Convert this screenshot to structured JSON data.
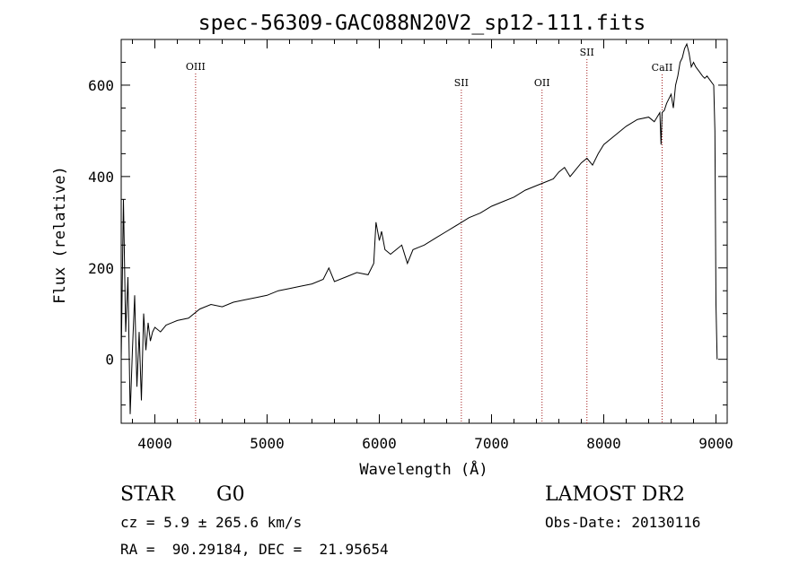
{
  "chart_data": {
    "type": "line",
    "title": "spec-56309-GAC088N20V2_sp12-111.fits",
    "xlabel": "Wavelength (Å)",
    "ylabel": "Flux (relative)",
    "xlim": [
      3700,
      9100
    ],
    "ylim": [
      -140,
      700
    ],
    "xticks": [
      4000,
      5000,
      6000,
      7000,
      8000,
      9000
    ],
    "yticks": [
      0,
      200,
      400,
      600
    ],
    "line_color": "#000000",
    "marker_color": "#a01818",
    "lines": [
      {
        "label": "OIII",
        "wavelength": 4363
      },
      {
        "label": "SII",
        "wavelength": 6731
      },
      {
        "label": "OII",
        "wavelength": 7450
      },
      {
        "label": "SII",
        "wavelength": 7850
      },
      {
        "label": "CaII",
        "wavelength": 8520
      }
    ],
    "series": [
      {
        "x": [
          3700,
          3720,
          3740,
          3760,
          3780,
          3800,
          3820,
          3840,
          3860,
          3880,
          3900,
          3920,
          3940,
          3960,
          3980,
          4000,
          4050,
          4100,
          4150,
          4200,
          4300,
          4400,
          4500,
          4600,
          4700,
          4800,
          4900,
          5000,
          5100,
          5200,
          5300,
          5400,
          5500,
          5550,
          5600,
          5700,
          5800,
          5900,
          5950,
          5970,
          6000,
          6020,
          6050,
          6100,
          6150,
          6200,
          6250,
          6300,
          6350,
          6400,
          6500,
          6600,
          6700,
          6800,
          6900,
          7000,
          7100,
          7200,
          7300,
          7400,
          7450,
          7500,
          7550,
          7600,
          7650,
          7700,
          7750,
          7800,
          7850,
          7900,
          7950,
          8000,
          8100,
          8200,
          8300,
          8400,
          8450,
          8500,
          8510,
          8520,
          8540,
          8560,
          8580,
          8600,
          8620,
          8640,
          8660,
          8680,
          8700,
          8720,
          8740,
          8760,
          8780,
          8800,
          8820,
          8850,
          8880,
          8900,
          8920,
          8950,
          8980,
          8990,
          9000,
          9010
        ],
        "y": [
          0,
          350,
          60,
          180,
          -120,
          20,
          140,
          -60,
          60,
          -90,
          100,
          20,
          80,
          40,
          60,
          70,
          60,
          75,
          80,
          85,
          90,
          110,
          120,
          115,
          125,
          130,
          135,
          140,
          150,
          155,
          160,
          165,
          175,
          200,
          170,
          180,
          190,
          185,
          210,
          300,
          260,
          280,
          240,
          230,
          240,
          250,
          210,
          240,
          245,
          250,
          265,
          280,
          295,
          310,
          320,
          335,
          345,
          355,
          370,
          380,
          385,
          390,
          395,
          410,
          420,
          400,
          415,
          430,
          440,
          425,
          450,
          470,
          490,
          510,
          525,
          530,
          520,
          540,
          470,
          540,
          545,
          560,
          570,
          580,
          550,
          600,
          620,
          650,
          660,
          680,
          690,
          670,
          640,
          650,
          640,
          630,
          620,
          615,
          620,
          610,
          600,
          500,
          120,
          0
        ]
      }
    ]
  },
  "info": {
    "object": "STAR",
    "subclass": "G0",
    "cz": "cz = 5.9 ± 265.6 km/s",
    "coords": "RA =  90.29184, DEC =  21.95654",
    "survey": "LAMOST DR2",
    "obs_date": "Obs-Date: 20130116"
  }
}
